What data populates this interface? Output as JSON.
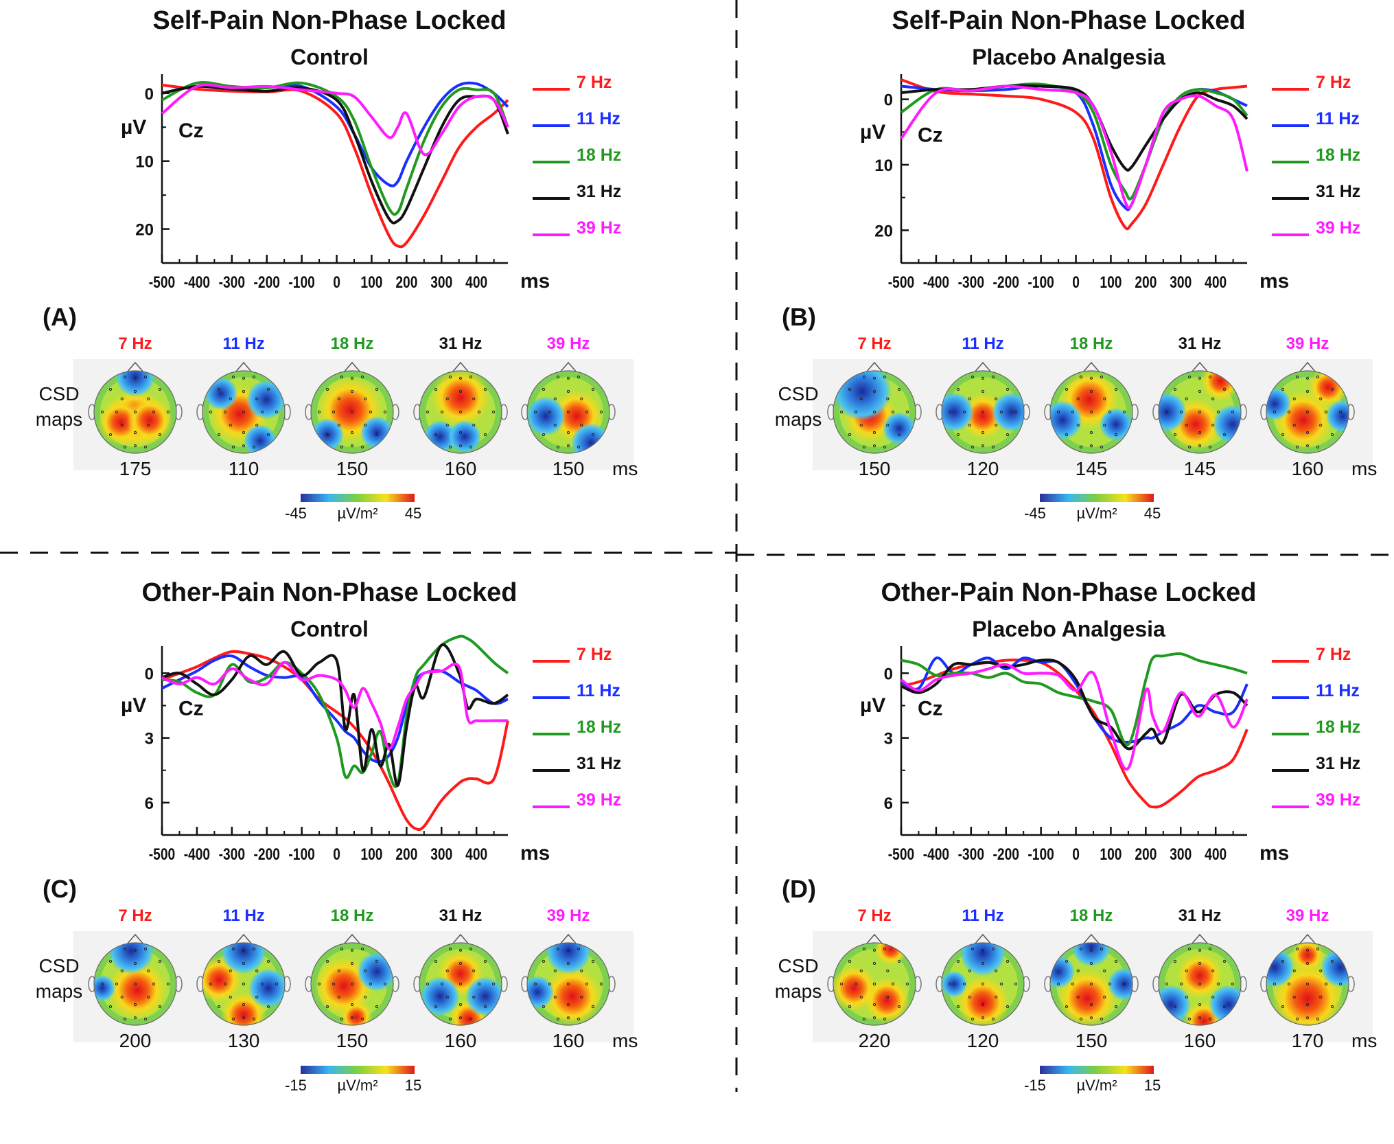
{
  "figure": {
    "colors": {
      "7 Hz": "#ff1a1a",
      "11 Hz": "#1a2eff",
      "18 Hz": "#1f9a1f",
      "31 Hz": "#111111",
      "39 Hz": "#ff1aff"
    },
    "csd_label_line1": "CSD",
    "csd_label_line2": "maps",
    "latency_unit": "ms",
    "colorbar_unit": "µV/m²"
  },
  "chart_data": [
    {
      "id": "A",
      "type": "line",
      "panel_label": "(A)",
      "title": "Self-Pain Non-Phase Locked",
      "subtitle": "Control",
      "channel": "Cz",
      "xlabel": "ms",
      "ylabel": "µV",
      "xlim": [
        -500,
        490
      ],
      "ylim": [
        -2,
        25
      ],
      "y_inverted": true,
      "xticks": [
        -500,
        -400,
        -300,
        -200,
        -100,
        0,
        100,
        200,
        300,
        400
      ],
      "yticks": [
        0,
        10,
        20
      ],
      "legend": [
        "7 Hz",
        "11 Hz",
        "18 Hz",
        "31 Hz",
        "39 Hz"
      ],
      "x": [
        -500,
        -400,
        -300,
        -200,
        -100,
        0,
        50,
        100,
        150,
        175,
        200,
        250,
        300,
        350,
        400,
        450,
        490
      ],
      "series": [
        {
          "name": "7 Hz",
          "values": [
            -1.2,
            -0.6,
            -0.3,
            -0.2,
            -0.3,
            3,
            8,
            15,
            21,
            22.5,
            22,
            18,
            13,
            8,
            5,
            3,
            1
          ]
        },
        {
          "name": "11 Hz",
          "values": [
            0,
            -1,
            -0.6,
            -0.8,
            -1,
            2,
            6,
            11,
            13.5,
            13,
            10,
            5,
            1,
            -1.2,
            -1.4,
            0,
            2
          ]
        },
        {
          "name": "18 Hz",
          "values": [
            1,
            -1.5,
            -1,
            -0.8,
            -1.5,
            0.5,
            4,
            11,
            17,
            17.5,
            14,
            7,
            2,
            -0.5,
            -0.5,
            0,
            5
          ]
        },
        {
          "name": "31 Hz",
          "values": [
            0,
            -1,
            -0.6,
            -0.3,
            -0.8,
            1,
            6,
            13,
            18.5,
            18.8,
            17,
            11,
            5,
            1,
            0.5,
            1,
            6
          ]
        },
        {
          "name": "39 Hz",
          "values": [
            3,
            -1,
            -0.8,
            -1,
            -0.5,
            0,
            0.5,
            3.5,
            6.5,
            5,
            3,
            9,
            6,
            2,
            0.5,
            1,
            5
          ]
        }
      ],
      "topo_freqs": [
        "7 Hz",
        "11 Hz",
        "18 Hz",
        "31 Hz",
        "39 Hz"
      ],
      "topo_latencies": [
        "175",
        "110",
        "150",
        "160",
        "150"
      ],
      "colorbar_min": "-45",
      "colorbar_max": "45"
    },
    {
      "id": "B",
      "type": "line",
      "panel_label": "(B)",
      "title": "Self-Pain Non-Phase Locked",
      "subtitle": "Placebo Analgesia",
      "channel": "Cz",
      "xlabel": "ms",
      "ylabel": "µV",
      "xlim": [
        -500,
        490
      ],
      "ylim": [
        -3,
        25
      ],
      "y_inverted": true,
      "xticks": [
        -500,
        -400,
        -300,
        -200,
        -100,
        0,
        100,
        200,
        300,
        400
      ],
      "yticks": [
        0,
        10,
        20
      ],
      "legend": [
        "7 Hz",
        "11 Hz",
        "18 Hz",
        "31 Hz",
        "39 Hz"
      ],
      "x": [
        -500,
        -400,
        -300,
        -200,
        -100,
        0,
        50,
        100,
        140,
        160,
        200,
        250,
        300,
        350,
        400,
        450,
        490
      ],
      "series": [
        {
          "name": "7 Hz",
          "values": [
            -3,
            -1.2,
            -0.8,
            -0.5,
            0,
            2,
            6,
            15,
            19.5,
            19,
            16,
            10,
            4,
            -0.5,
            -1.5,
            -1.8,
            -2
          ]
        },
        {
          "name": "11 Hz",
          "values": [
            -2,
            -1.5,
            -1.3,
            -1.5,
            -2,
            -1,
            4,
            13,
            16.5,
            16,
            10,
            3,
            -0.5,
            -1.5,
            -1.2,
            0,
            1
          ]
        },
        {
          "name": "18 Hz",
          "values": [
            2,
            -1.5,
            -1.3,
            -2,
            -2.3,
            -1,
            2,
            10,
            14,
            15,
            10,
            3,
            -0.5,
            -1.5,
            -1,
            0,
            2.5
          ]
        },
        {
          "name": "31 Hz",
          "values": [
            -1,
            -1.5,
            -1.5,
            -2,
            -2,
            -1.5,
            1,
            7,
            10.5,
            10.3,
            7,
            3,
            0,
            -1,
            0,
            1,
            3
          ]
        },
        {
          "name": "39 Hz",
          "values": [
            6,
            -1,
            -1.3,
            -2,
            -1.5,
            -1,
            1,
            8,
            15.5,
            16,
            10,
            2,
            0,
            -0.5,
            1,
            3,
            11
          ]
        }
      ],
      "topo_freqs": [
        "7 Hz",
        "11 Hz",
        "18 Hz",
        "31 Hz",
        "39 Hz"
      ],
      "topo_latencies": [
        "150",
        "120",
        "145",
        "145",
        "160"
      ],
      "colorbar_min": "-45",
      "colorbar_max": "45"
    },
    {
      "id": "C",
      "type": "line",
      "panel_label": "(C)",
      "title": "Other-Pain Non-Phase Locked",
      "subtitle": "Control",
      "channel": "Cz",
      "xlabel": "ms",
      "ylabel": "µV",
      "xlim": [
        -500,
        490
      ],
      "ylim": [
        -1,
        7.5
      ],
      "y_inverted": true,
      "xticks": [
        -500,
        -400,
        -300,
        -200,
        -100,
        0,
        100,
        200,
        300,
        400
      ],
      "yticks": [
        0,
        3,
        6
      ],
      "legend": [
        "7 Hz",
        "11 Hz",
        "18 Hz",
        "31 Hz",
        "39 Hz"
      ],
      "x": [
        -500,
        -450,
        -400,
        -350,
        -300,
        -250,
        -200,
        -150,
        -100,
        -50,
        0,
        25,
        50,
        75,
        100,
        125,
        150,
        175,
        200,
        225,
        250,
        300,
        350,
        375,
        400,
        450,
        490
      ],
      "series": [
        {
          "name": "7 Hz",
          "values": [
            0.3,
            0,
            -0.3,
            -0.7,
            -1,
            -0.9,
            -0.7,
            -0.3,
            0.3,
            1.2,
            1.8,
            2.1,
            2.5,
            3,
            3.6,
            4.3,
            5.1,
            6,
            6.8,
            7.2,
            7.1,
            5.9,
            5.1,
            4.9,
            4.9,
            4.9,
            2.2
          ]
        },
        {
          "name": "11 Hz",
          "values": [
            0.7,
            0.3,
            -0.1,
            -0.6,
            -0.8,
            -0.3,
            0.1,
            0.2,
            0.2,
            1.3,
            2.2,
            2.7,
            3,
            3.6,
            4,
            4.1,
            3.8,
            3,
            1.5,
            0.4,
            0,
            -0.1,
            0.4,
            0.6,
            0.8,
            1.4,
            1.2
          ]
        },
        {
          "name": "18 Hz",
          "values": [
            0.3,
            0.4,
            0.9,
            1,
            -0.4,
            0.4,
            0.2,
            -0.5,
            0,
            1,
            3,
            4.8,
            4.3,
            4.6,
            3.7,
            2.7,
            4.6,
            5.1,
            2,
            0.2,
            -0.4,
            -1.3,
            -1.7,
            -1.6,
            -1.3,
            -0.5,
            0
          ]
        },
        {
          "name": "31 Hz",
          "values": [
            0.2,
            0,
            0.5,
            1,
            0.3,
            -0.8,
            -0.4,
            -1,
            0.1,
            -0.5,
            -0.6,
            2.6,
            1,
            4.5,
            2.6,
            4.3,
            3.3,
            5.2,
            2.5,
            0.6,
            1.1,
            -1.3,
            0,
            1.6,
            1.2,
            1.4,
            1
          ]
        },
        {
          "name": "39 Hz",
          "values": [
            0.2,
            0.5,
            0.2,
            0.5,
            -0.2,
            0.3,
            0.5,
            -0.5,
            0.3,
            0.1,
            0.3,
            0.8,
            1.6,
            0.7,
            1.4,
            2.3,
            3.5,
            2.5,
            1.2,
            0.6,
            0,
            -0.1,
            -0.3,
            2.1,
            2.2,
            2.2,
            2.2
          ]
        }
      ],
      "topo_freqs": [
        "7 Hz",
        "11 Hz",
        "18 Hz",
        "31 Hz",
        "39 Hz"
      ],
      "topo_latencies": [
        "200",
        "130",
        "150",
        "160",
        "160"
      ],
      "colorbar_min": "-15",
      "colorbar_max": "15"
    },
    {
      "id": "D",
      "type": "line",
      "panel_label": "(D)",
      "title": "Other-Pain Non-Phase Locked",
      "subtitle": "Placebo Analgesia",
      "channel": "Cz",
      "xlabel": "ms",
      "ylabel": "µV",
      "xlim": [
        -500,
        490
      ],
      "ylim": [
        -1,
        7.5
      ],
      "y_inverted": true,
      "xticks": [
        -500,
        -400,
        -300,
        -200,
        -100,
        0,
        100,
        200,
        300,
        400
      ],
      "yticks": [
        0,
        3,
        6
      ],
      "legend": [
        "7 Hz",
        "11 Hz",
        "18 Hz",
        "31 Hz",
        "39 Hz"
      ],
      "x": [
        -500,
        -450,
        -400,
        -350,
        -300,
        -250,
        -200,
        -150,
        -100,
        -50,
        0,
        50,
        100,
        150,
        200,
        220,
        250,
        300,
        350,
        400,
        450,
        490
      ],
      "series": [
        {
          "name": "7 Hz",
          "values": [
            0.6,
            0.4,
            0.1,
            -0.2,
            -0.4,
            -0.5,
            -0.6,
            -0.6,
            -0.5,
            0,
            0.8,
            1.8,
            3.3,
            5,
            6,
            6.2,
            6.1,
            5.5,
            4.8,
            4.5,
            4,
            2.6
          ]
        },
        {
          "name": "11 Hz",
          "values": [
            0.4,
            0.7,
            -0.7,
            0,
            -0.4,
            -0.7,
            -0.2,
            -0.7,
            -0.5,
            -0.5,
            0.5,
            2,
            3,
            3.2,
            3,
            3,
            2.7,
            2.3,
            1.5,
            1.8,
            1.8,
            0.5
          ]
        },
        {
          "name": "18 Hz",
          "values": [
            -0.6,
            -0.4,
            0.1,
            0,
            0,
            0.2,
            0,
            0.4,
            0.5,
            0.9,
            1.1,
            1.3,
            1.7,
            3.3,
            0.3,
            -0.7,
            -0.8,
            -0.9,
            -0.6,
            -0.4,
            -0.2,
            0
          ]
        },
        {
          "name": "31 Hz",
          "values": [
            0.6,
            0.9,
            0.5,
            -0.4,
            -0.4,
            -0.5,
            -0.3,
            -0.4,
            -0.6,
            -0.5,
            0.3,
            2,
            2.5,
            3.5,
            2.8,
            2.6,
            3.2,
            1,
            1.8,
            1,
            0.9,
            1.5
          ]
        },
        {
          "name": "39 Hz",
          "values": [
            0.3,
            0.8,
            0.3,
            0.1,
            0,
            -0.2,
            -0.4,
            0,
            0,
            0.1,
            0.8,
            0,
            2.7,
            4.4,
            0.8,
            2,
            2.7,
            0.9,
            2,
            1,
            2.5,
            1.2
          ]
        }
      ],
      "topo_freqs": [
        "7 Hz",
        "11 Hz",
        "18 Hz",
        "31 Hz",
        "39 Hz"
      ],
      "topo_latencies": [
        "220",
        "120",
        "150",
        "160",
        "170"
      ],
      "colorbar_min": "-15",
      "colorbar_max": "15"
    }
  ]
}
